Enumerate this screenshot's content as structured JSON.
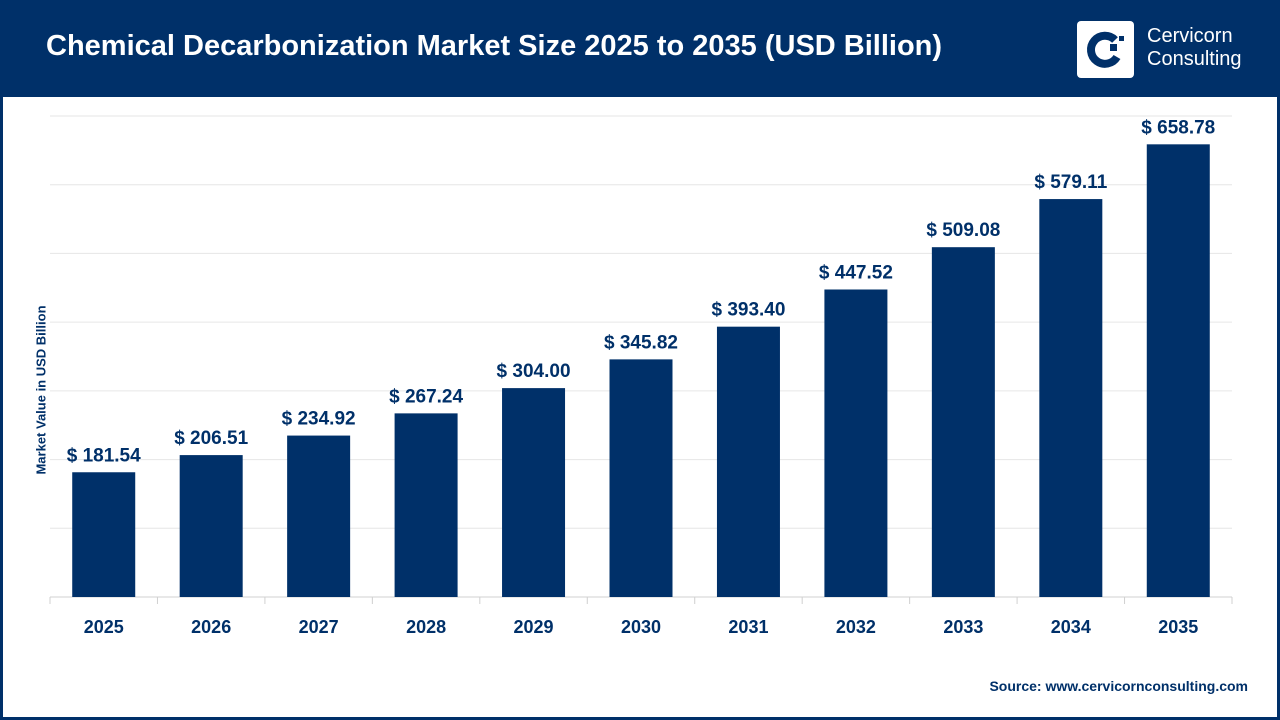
{
  "header": {
    "title": "Chemical Decarbonization Market Size 2025 to 2035 (USD Billion)",
    "logo_line1": "Cervicorn",
    "logo_line2": "Consulting"
  },
  "source": "Source: www.cervicornconsulting.com",
  "colors": {
    "bar": "#003069",
    "header": "#003069",
    "grid": "#e6e6e6"
  },
  "chart_data": {
    "type": "bar",
    "title": "Chemical Decarbonization Market Size 2025 to 2035 (USD Billion)",
    "xlabel": "",
    "ylabel": "Market Value in USD Billion",
    "categories": [
      "2025",
      "2026",
      "2027",
      "2028",
      "2029",
      "2030",
      "2031",
      "2032",
      "2033",
      "2034",
      "2035"
    ],
    "values": [
      181.54,
      206.51,
      234.92,
      267.24,
      304.0,
      345.82,
      393.4,
      447.52,
      509.08,
      579.11,
      658.78
    ],
    "labels": [
      "$ 181.54",
      "$ 206.51",
      "$ 234.92",
      "$ 267.24",
      "$ 304.00",
      "$ 345.82",
      "$ 393.40",
      "$ 447.52",
      "$ 509.08",
      "$ 579.11",
      "$ 658.78"
    ],
    "ylim": [
      0,
      700
    ],
    "grid_step": 100,
    "grid": true
  }
}
